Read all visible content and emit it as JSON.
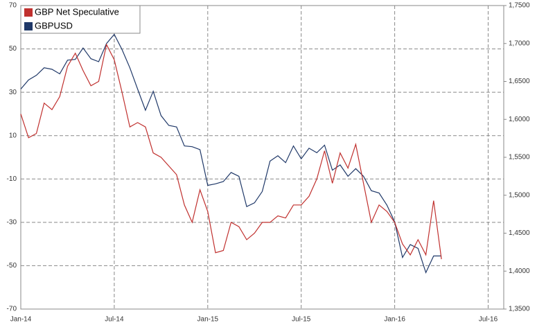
{
  "chart_data": {
    "type": "line",
    "x": [
      0,
      0.5,
      1,
      1.5,
      2,
      2.5,
      3,
      3.5,
      4,
      4.5,
      5,
      5.5,
      6,
      6.5,
      7,
      7.5,
      8,
      8.5,
      9,
      9.5,
      10,
      10.5,
      11,
      11.5,
      12,
      12.5,
      13,
      13.5,
      14,
      14.5,
      15,
      15.5,
      16,
      16.5,
      17,
      17.5,
      18,
      18.5,
      19,
      19.5,
      20,
      20.5,
      21,
      21.5,
      22,
      22.5,
      23,
      23.5,
      24,
      24.5,
      25,
      25.5,
      26,
      26.5,
      27
    ],
    "xlim": [
      0,
      31
    ],
    "xticks": [
      {
        "value": 0,
        "label": "Jan-14"
      },
      {
        "value": 6,
        "label": "Jul-14"
      },
      {
        "value": 12,
        "label": "Jan-15"
      },
      {
        "value": 18,
        "label": "Jul-15"
      },
      {
        "value": 24,
        "label": "Jan-16"
      },
      {
        "value": 30,
        "label": "Jul-16"
      }
    ],
    "ylim": [
      -70,
      70
    ],
    "yticks": [
      70,
      50,
      30,
      10,
      -10,
      -30,
      -50,
      -70
    ],
    "y2lim": [
      1.35,
      1.75
    ],
    "y2ticks": [
      {
        "value": 1.75,
        "label": "1,7500"
      },
      {
        "value": 1.7,
        "label": "1,7000"
      },
      {
        "value": 1.65,
        "label": "1,6500"
      },
      {
        "value": 1.6,
        "label": "1,6000"
      },
      {
        "value": 1.55,
        "label": "1,5500"
      },
      {
        "value": 1.5,
        "label": "1,5000"
      },
      {
        "value": 1.45,
        "label": "1,4500"
      },
      {
        "value": 1.4,
        "label": "1,4000"
      },
      {
        "value": 1.35,
        "label": "1,3500"
      }
    ],
    "grid": true,
    "legend": "top-left",
    "series": [
      {
        "name": "GBP Net Speculative",
        "color": "#c0302e",
        "values": [
          20,
          9,
          11,
          25,
          22,
          28,
          42,
          48,
          40,
          33,
          35,
          52,
          45,
          30,
          14,
          16,
          14,
          2,
          0,
          -4,
          -8,
          -22,
          -30,
          -15,
          -25,
          -44,
          -43,
          -30,
          -32,
          -38,
          -35,
          -30,
          -30,
          -27,
          -28,
          -22,
          -22,
          -18,
          -10,
          3,
          -12,
          2,
          -5,
          6,
          -12,
          -30,
          -22,
          -25,
          -30,
          -40,
          -45,
          -38,
          -45,
          -20,
          -47
        ]
      },
      {
        "name": "GBPUSD",
        "color": "#1f3868",
        "axis": "y2",
        "values": [
          1.64,
          1.652,
          1.658,
          1.668,
          1.666,
          1.66,
          1.678,
          1.679,
          1.694,
          1.68,
          1.676,
          1.7,
          1.712,
          1.692,
          1.668,
          1.64,
          1.612,
          1.637,
          1.605,
          1.592,
          1.59,
          1.565,
          1.564,
          1.56,
          1.513,
          1.515,
          1.518,
          1.53,
          1.525,
          1.485,
          1.49,
          1.505,
          1.545,
          1.552,
          1.543,
          1.565,
          1.548,
          1.562,
          1.556,
          1.566,
          1.533,
          1.54,
          1.525,
          1.535,
          1.525,
          1.506,
          1.503,
          1.487,
          1.465,
          1.418,
          1.435,
          1.43,
          1.398,
          1.42,
          1.42
        ]
      }
    ]
  }
}
